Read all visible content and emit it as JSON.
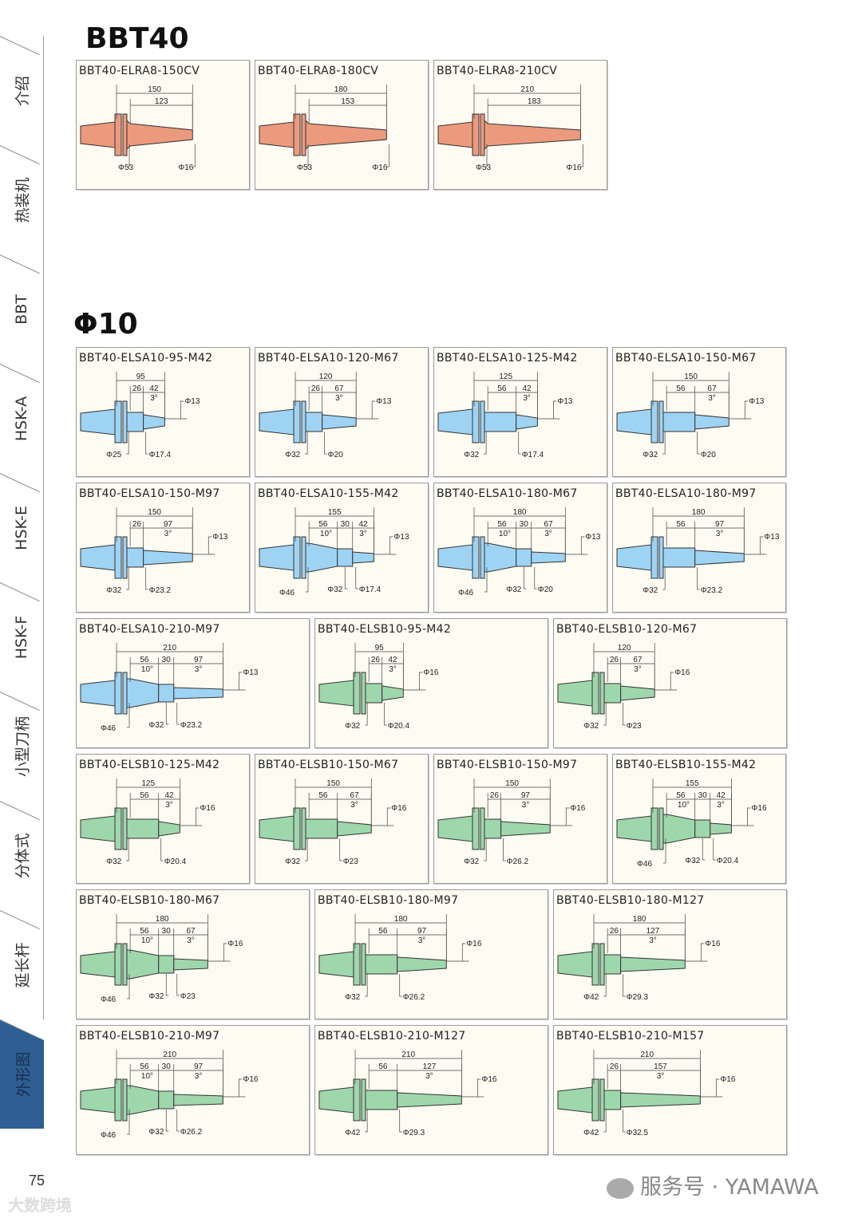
{
  "sidebar": {
    "items": [
      {
        "label": "介绍"
      },
      {
        "label": "热装机"
      },
      {
        "label": "BBT"
      },
      {
        "label": "HSK-A"
      },
      {
        "label": "HSK-E"
      },
      {
        "label": "HSK-F"
      },
      {
        "label": "小型刀柄"
      },
      {
        "label": "分体式"
      },
      {
        "label": "延长杆"
      },
      {
        "label": "外形图",
        "active": true
      }
    ]
  },
  "sections": [
    {
      "heading": "BBT40"
    },
    {
      "heading": "Φ10"
    }
  ],
  "colors": {
    "orange": "#ec9a7e",
    "blue": "#9fd3f3",
    "green": "#9fd7ad",
    "active_tab": "#2e5e94"
  },
  "cards": [
    {
      "title": "BBT40-ELRA8-150CV",
      "color": "orange",
      "total": "150",
      "segs": [
        "123"
      ],
      "angles": [],
      "tip": "",
      "bottom": [
        "Φ53",
        "Φ16"
      ]
    },
    {
      "title": "BBT40-ELRA8-180CV",
      "color": "orange",
      "total": "180",
      "segs": [
        "153"
      ],
      "angles": [],
      "tip": "",
      "bottom": [
        "Φ53",
        "Φ16"
      ]
    },
    {
      "title": "BBT40-ELRA8-210CV",
      "color": "orange",
      "total": "210",
      "segs": [
        "183"
      ],
      "angles": [],
      "tip": "",
      "bottom": [
        "Φ53",
        "Φ16"
      ]
    },
    {
      "title": "BBT40-ELSA10-95-M42",
      "color": "blue",
      "total": "95",
      "segs": [
        "26",
        "42"
      ],
      "angles": [
        "3°"
      ],
      "tip": "Φ13",
      "bottom": [
        "Φ25",
        "Φ17.4"
      ]
    },
    {
      "title": "BBT40-ELSA10-120-M67",
      "color": "blue",
      "total": "120",
      "segs": [
        "26",
        "67"
      ],
      "angles": [
        "3°"
      ],
      "tip": "Φ13",
      "bottom": [
        "Φ32",
        "Φ20"
      ]
    },
    {
      "title": "BBT40-ELSA10-125-M42",
      "color": "blue",
      "total": "125",
      "segs": [
        "56",
        "42"
      ],
      "angles": [
        "3°"
      ],
      "tip": "Φ13",
      "bottom": [
        "Φ32",
        "Φ17.4"
      ]
    },
    {
      "title": "BBT40-ELSA10-150-M67",
      "color": "blue",
      "total": "150",
      "segs": [
        "56",
        "67"
      ],
      "angles": [
        "3°"
      ],
      "tip": "Φ13",
      "bottom": [
        "Φ32",
        "Φ20"
      ]
    },
    {
      "title": "BBT40-ELSA10-150-M97",
      "color": "blue",
      "total": "150",
      "segs": [
        "26",
        "97"
      ],
      "angles": [
        "3°"
      ],
      "tip": "Φ13",
      "bottom": [
        "Φ32",
        "Φ23.2"
      ]
    },
    {
      "title": "BBT40-ELSA10-155-M42",
      "color": "blue",
      "total": "155",
      "segs": [
        "56",
        "30",
        "42"
      ],
      "angles": [
        "10°",
        "3°"
      ],
      "tip": "Φ13",
      "bottom": [
        "Φ46",
        "Φ32",
        "Φ17.4"
      ]
    },
    {
      "title": "BBT40-ELSA10-180-M67",
      "color": "blue",
      "total": "180",
      "segs": [
        "56",
        "30",
        "67"
      ],
      "angles": [
        "10°",
        "3°"
      ],
      "tip": "Φ13",
      "bottom": [
        "Φ46",
        "Φ32",
        "Φ20"
      ]
    },
    {
      "title": "BBT40-ELSA10-180-M97",
      "color": "blue",
      "total": "180",
      "segs": [
        "56",
        "97"
      ],
      "angles": [
        "3°"
      ],
      "tip": "Φ13",
      "bottom": [
        "Φ32",
        "Φ23.2"
      ]
    },
    {
      "title": "BBT40-ELSA10-210-M97",
      "color": "blue",
      "total": "210",
      "segs": [
        "56",
        "30",
        "97"
      ],
      "angles": [
        "10°",
        "3°"
      ],
      "tip": "Φ13",
      "bottom": [
        "Φ46",
        "Φ32",
        "Φ23.2"
      ]
    },
    {
      "title": "BBT40-ELSB10-95-M42",
      "color": "green",
      "total": "95",
      "segs": [
        "26",
        "42"
      ],
      "angles": [
        "3°"
      ],
      "tip": "Φ16",
      "bottom": [
        "Φ32",
        "Φ20.4"
      ]
    },
    {
      "title": "BBT40-ELSB10-120-M67",
      "color": "green",
      "total": "120",
      "segs": [
        "26",
        "67"
      ],
      "angles": [
        "3°"
      ],
      "tip": "Φ16",
      "bottom": [
        "Φ32",
        "Φ23"
      ]
    },
    {
      "title": "BBT40-ELSB10-125-M42",
      "color": "green",
      "total": "125",
      "segs": [
        "56",
        "42"
      ],
      "angles": [
        "3°"
      ],
      "tip": "Φ16",
      "bottom": [
        "Φ32",
        "Φ20.4"
      ]
    },
    {
      "title": "BBT40-ELSB10-150-M67",
      "color": "green",
      "total": "150",
      "segs": [
        "56",
        "67"
      ],
      "angles": [
        "3°"
      ],
      "tip": "Φ16",
      "bottom": [
        "Φ32",
        "Φ23"
      ]
    },
    {
      "title": "BBT40-ELSB10-150-M97",
      "color": "green",
      "total": "150",
      "segs": [
        "26",
        "97"
      ],
      "angles": [
        "3°"
      ],
      "tip": "Φ16",
      "bottom": [
        "Φ32",
        "Φ26.2"
      ]
    },
    {
      "title": "BBT40-ELSB10-155-M42",
      "color": "green",
      "total": "155",
      "segs": [
        "56",
        "30",
        "42"
      ],
      "angles": [
        "10°",
        "3°"
      ],
      "tip": "Φ16",
      "bottom": [
        "Φ46",
        "Φ32",
        "Φ20.4"
      ]
    },
    {
      "title": "BBT40-ELSB10-180-M67",
      "color": "green",
      "total": "180",
      "segs": [
        "56",
        "30",
        "67"
      ],
      "angles": [
        "10°",
        "3°"
      ],
      "tip": "Φ16",
      "bottom": [
        "Φ46",
        "Φ32",
        "Φ23"
      ]
    },
    {
      "title": "BBT40-ELSB10-180-M97",
      "color": "green",
      "total": "180",
      "segs": [
        "56",
        "97"
      ],
      "angles": [
        "3°"
      ],
      "tip": "Φ16",
      "bottom": [
        "Φ32",
        "Φ26.2"
      ]
    },
    {
      "title": "BBT40-ELSB10-180-M127",
      "color": "green",
      "total": "180",
      "segs": [
        "26",
        "127"
      ],
      "angles": [
        "3°"
      ],
      "tip": "Φ16",
      "bottom": [
        "Φ42",
        "Φ29.3"
      ]
    },
    {
      "title": "BBT40-ELSB10-210-M97",
      "color": "green",
      "total": "210",
      "segs": [
        "56",
        "30",
        "97"
      ],
      "angles": [
        "10°",
        "3°"
      ],
      "tip": "Φ16",
      "bottom": [
        "Φ46",
        "Φ32",
        "Φ26.2"
      ]
    },
    {
      "title": "BBT40-ELSB10-210-M127",
      "color": "green",
      "total": "210",
      "segs": [
        "56",
        "127"
      ],
      "angles": [
        "3°"
      ],
      "tip": "Φ16",
      "bottom": [
        "Φ42",
        "Φ29.3"
      ]
    },
    {
      "title": "BBT40-ELSB10-210-M157",
      "color": "green",
      "total": "210",
      "segs": [
        "26",
        "157"
      ],
      "angles": [
        "3°"
      ],
      "tip": "Φ16",
      "bottom": [
        "Φ42",
        "Φ32.5"
      ]
    }
  ],
  "footer": {
    "page_number": "75",
    "watermark_left": "大数跨境",
    "watermark_right": "服务号 · YAMAWA"
  }
}
